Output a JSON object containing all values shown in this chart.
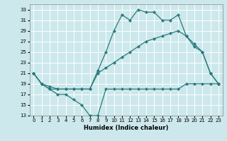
{
  "xlabel": "Humidex (Indice chaleur)",
  "bg_color": "#cce8ec",
  "grid_color": "#ffffff",
  "line_color": "#2a7a7a",
  "xlim": [
    -0.5,
    23.5
  ],
  "ylim": [
    13,
    34
  ],
  "xticks": [
    0,
    1,
    2,
    3,
    4,
    5,
    6,
    7,
    8,
    9,
    10,
    11,
    12,
    13,
    14,
    15,
    16,
    17,
    18,
    19,
    20,
    21,
    22,
    23
  ],
  "yticks": [
    13,
    15,
    17,
    19,
    21,
    23,
    25,
    27,
    29,
    31,
    33
  ],
  "line1_x": [
    0,
    1,
    2,
    3,
    4,
    5,
    6,
    7,
    8,
    9,
    10,
    11,
    12,
    13,
    14,
    15,
    16,
    17,
    18,
    19,
    20,
    21,
    22,
    23
  ],
  "line1_y": [
    21,
    19,
    18,
    17,
    17,
    16,
    15,
    13,
    13,
    18,
    18,
    18,
    18,
    18,
    18,
    18,
    18,
    18,
    18,
    19,
    19,
    19,
    19,
    19
  ],
  "line2_x": [
    0,
    1,
    2,
    3,
    4,
    5,
    6,
    7,
    8,
    9,
    10,
    11,
    12,
    13,
    14,
    15,
    16,
    17,
    18,
    19,
    20,
    21,
    22,
    23
  ],
  "line2_y": [
    21,
    19,
    18,
    18,
    18,
    18,
    18,
    18,
    21.5,
    25,
    29,
    32,
    31,
    33,
    32.5,
    32.5,
    31,
    31,
    32,
    28,
    26,
    25,
    21,
    19
  ],
  "line3_x": [
    0,
    1,
    2,
    3,
    4,
    5,
    6,
    7,
    8,
    9,
    10,
    11,
    12,
    13,
    14,
    15,
    16,
    17,
    18,
    19,
    20,
    21,
    22,
    23
  ],
  "line3_y": [
    21,
    19,
    18.5,
    18,
    18,
    18,
    18,
    18,
    21,
    22,
    23,
    24,
    25,
    26,
    27,
    27.5,
    28,
    28.5,
    29,
    28,
    26.5,
    25,
    21,
    19
  ]
}
